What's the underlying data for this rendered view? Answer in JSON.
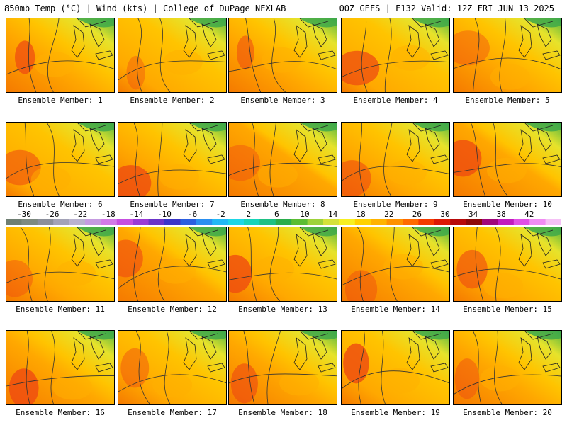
{
  "header": {
    "left_title": "850mb Temp (°C) | Wind (kts) | College of DuPage NEXLAB",
    "right_title": "00Z GEFS | F132 Valid: 12Z FRI JUN 13 2025"
  },
  "colorbar": {
    "labels": [
      "-30",
      "-26",
      "-22",
      "-18",
      "-14",
      "-10",
      "-6",
      "-2",
      "2",
      "6",
      "10",
      "14",
      "18",
      "22",
      "26",
      "30",
      "34",
      "38",
      "42"
    ],
    "colors": [
      "#6f7f73",
      "#7e8a80",
      "#8b8f9b",
      "#a3a3b7",
      "#b9b2cf",
      "#c59be0",
      "#d27ae8",
      "#c54fe0",
      "#9a3bd6",
      "#6a35c9",
      "#3a36c8",
      "#2b5fe0",
      "#2a8ff0",
      "#23b8f5",
      "#1ed6e6",
      "#18d4b9",
      "#1fc084",
      "#2aad4c",
      "#5bbd33",
      "#9ed23a",
      "#d4e23a",
      "#f7ef22",
      "#ffd200",
      "#ffb300",
      "#ff9100",
      "#ff6a00",
      "#f53b00",
      "#dc1a05",
      "#b70a0a",
      "#8e0909",
      "#a0077a",
      "#c21bbf",
      "#e04fe6",
      "#f08cf3",
      "#f5c1f6"
    ]
  },
  "members": [
    {
      "label": "Ensemble Member: 1"
    },
    {
      "label": "Ensemble Member: 2"
    },
    {
      "label": "Ensemble Member: 3"
    },
    {
      "label": "Ensemble Member: 4"
    },
    {
      "label": "Ensemble Member: 5"
    },
    {
      "label": "Ensemble Member: 6"
    },
    {
      "label": "Ensemble Member: 7"
    },
    {
      "label": "Ensemble Member: 8"
    },
    {
      "label": "Ensemble Member: 9"
    },
    {
      "label": "Ensemble Member: 10"
    },
    {
      "label": "Ensemble Member: 11"
    },
    {
      "label": "Ensemble Member: 12"
    },
    {
      "label": "Ensemble Member: 13"
    },
    {
      "label": "Ensemble Member: 14"
    },
    {
      "label": "Ensemble Member: 15"
    },
    {
      "label": "Ensemble Member: 16"
    },
    {
      "label": "Ensemble Member: 17"
    },
    {
      "label": "Ensemble Member: 18"
    },
    {
      "label": "Ensemble Member: 19"
    },
    {
      "label": "Ensemble Member: 20"
    }
  ]
}
